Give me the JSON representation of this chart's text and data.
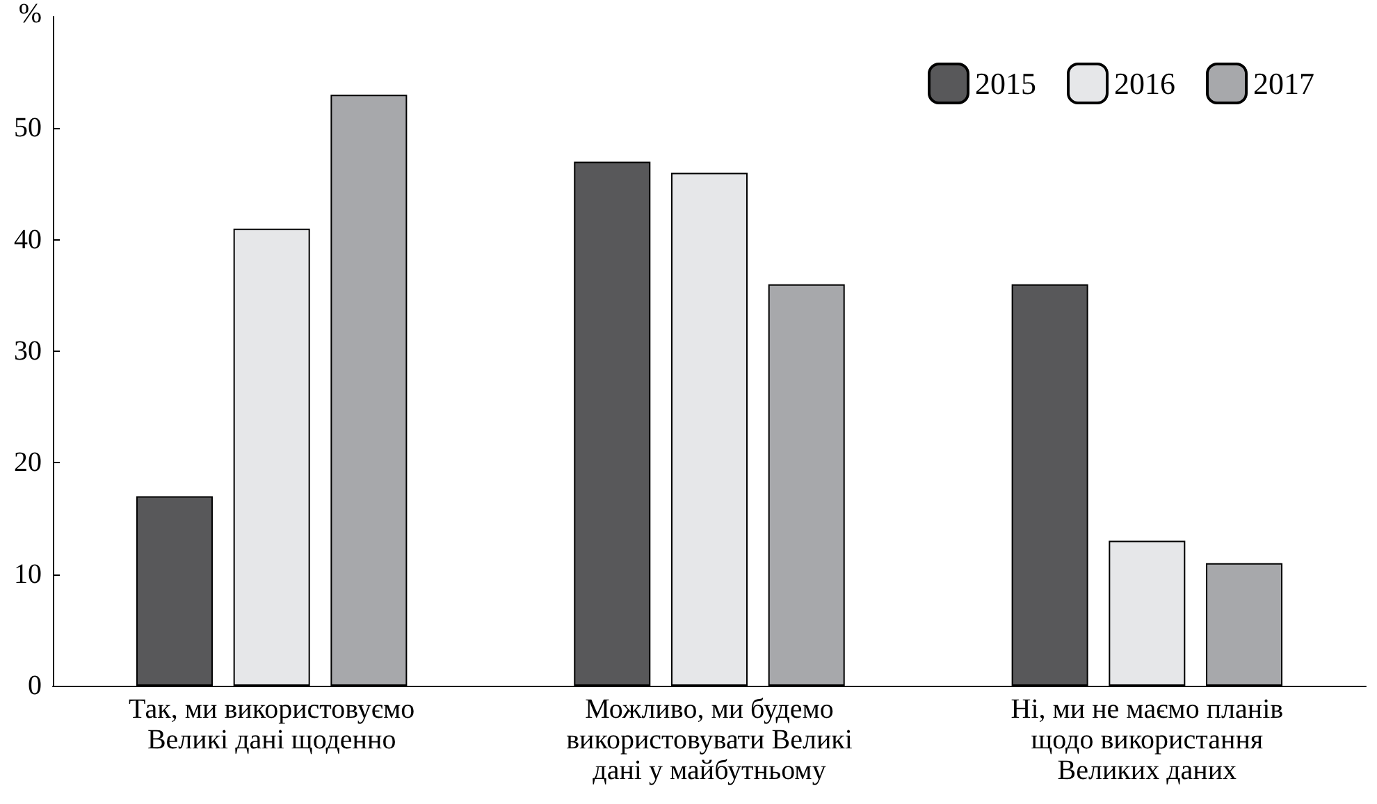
{
  "chart_data": {
    "type": "bar",
    "ylabel": "%",
    "categories": [
      "Так, ми використовуємо Великі дані щоденно",
      "Можливо, ми будемо використовувати Великі дані у майбутньому",
      "Ні, ми не маємо планів щодо використання Великих даних"
    ],
    "series": [
      {
        "name": "2015",
        "color": "#58585a",
        "values": [
          17,
          47,
          36
        ]
      },
      {
        "name": "2016",
        "color": "#e6e7e9",
        "values": [
          41,
          46,
          13
        ]
      },
      {
        "name": "2017",
        "color": "#a7a8ab",
        "values": [
          53,
          36,
          11
        ]
      }
    ],
    "ylim": [
      0,
      60
    ],
    "yticks": [
      0,
      10,
      20,
      30,
      40,
      50
    ],
    "grid": false,
    "legend": "top right"
  }
}
